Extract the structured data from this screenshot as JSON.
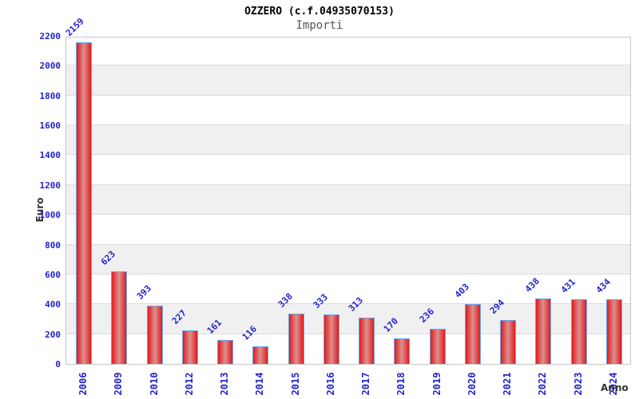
{
  "chart_data": {
    "type": "bar",
    "title": "OZZERO (c.f.04935070153)",
    "subtitle": "Importi",
    "xlabel": "Anno",
    "ylabel": "Euro",
    "categories": [
      "2006",
      "2009",
      "2010",
      "2012",
      "2013",
      "2014",
      "2015",
      "2016",
      "2017",
      "2018",
      "2019",
      "2020",
      "2021",
      "2022",
      "2023",
      "2024"
    ],
    "values": [
      2159,
      623,
      393,
      227,
      161,
      116,
      338,
      333,
      313,
      170,
      236,
      403,
      294,
      438,
      431,
      434
    ],
    "ylim": [
      0,
      2200
    ],
    "ytick_step": 200,
    "legend": "none",
    "grid": "horizontal-bands",
    "colors": {
      "bar_edge_fill": "#e31a1a",
      "bar_center_fill": "#dc9090",
      "bar_border": "#66aaee",
      "tick_label": "#2323cb",
      "value_label": "#2323cb",
      "band": "#f0f0f0",
      "gridline": "#dcdcdc",
      "plot_border": "#c6c6c6",
      "title_color": "#000000",
      "subtitle_color": "#555555",
      "axis_title_color": "#333333"
    }
  }
}
